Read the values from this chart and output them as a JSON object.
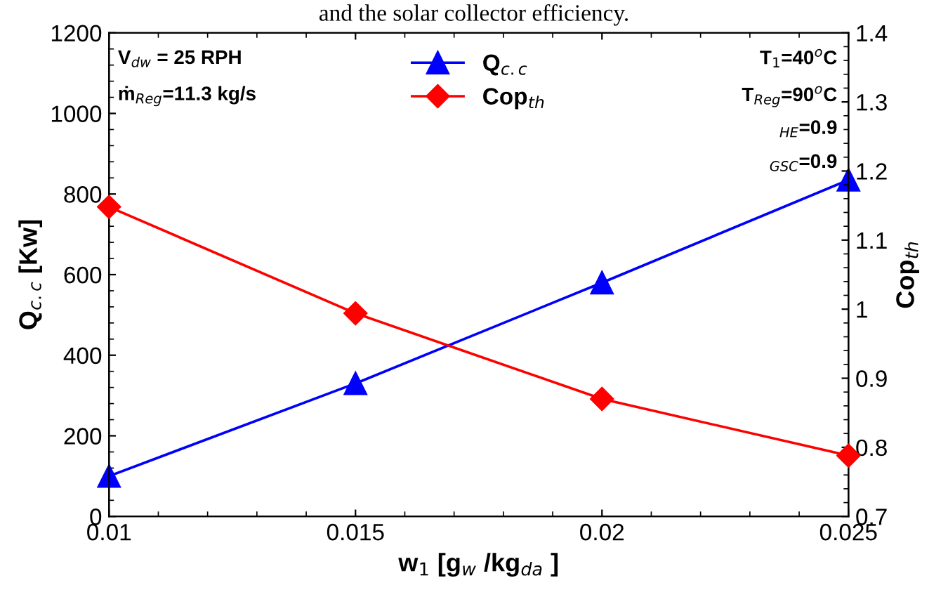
{
  "chart_data": {
    "type": "line",
    "title": "and the solar collector efficiency.",
    "xlabel": "w$_{1}$ [g$_{w}$ /kg$_{da}$ ]",
    "ylabel": "Q$_{c.c}$ [Kw]",
    "y2label": "Cop$_{th}$",
    "x": [
      0.01,
      0.015,
      0.02,
      0.025
    ],
    "series": [
      {
        "name": "Q$_{c.c}$",
        "color": "#0000ff",
        "marker": "triangle",
        "values": [
          100,
          330,
          580,
          835
        ]
      },
      {
        "name": "Cop$_{th}$",
        "color": "#ff0000",
        "marker": "diamond",
        "axis": "y2",
        "values": [
          1.148,
          0.994,
          0.87,
          0.788
        ]
      }
    ],
    "xlim": [
      0.01,
      0.025
    ],
    "xticks": [
      0.01,
      0.015,
      0.02,
      0.025
    ],
    "ylim": [
      0,
      1200
    ],
    "yticks": [
      0,
      200,
      400,
      600,
      800,
      1000,
      1200
    ],
    "y2lim": [
      0.7,
      1.4
    ],
    "y2ticks": [
      0.7,
      0.8,
      0.9,
      1,
      1.1,
      1.2,
      1.3,
      1.4
    ],
    "legend": "top",
    "grid": false,
    "line_style": "solid",
    "annotations": [
      "V$_{dw}$ = 25 RPH",
      "ṁ$_{Reg}$=11.3 kg/s",
      "T$_{1}$=40$^{o}$C",
      "T$_{Reg}$=90$^{o}$C",
      "$_{HE}$=0.9",
      "$_{GSC}$=0.9"
    ]
  }
}
